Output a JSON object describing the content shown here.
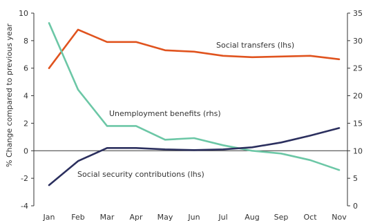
{
  "chart_data": {
    "type": "line",
    "title": "",
    "categories": [
      "Jan",
      "Feb",
      "Mar",
      "Apr",
      "May",
      "Jun",
      "Jul",
      "Aug",
      "Sep",
      "Oct",
      "Nov"
    ],
    "y_left": {
      "label": "% Change compared to previous year",
      "range": [
        -4,
        10
      ],
      "ticks": [
        -4,
        -2,
        0,
        2,
        4,
        6,
        8,
        10
      ]
    },
    "y_right": {
      "label": "",
      "range": [
        0,
        35
      ],
      "ticks": [
        0,
        5,
        10,
        15,
        20,
        25,
        30,
        35
      ]
    },
    "grid": false,
    "series": [
      {
        "name": "Social transfers (lhs)",
        "axis": "left",
        "color": "#E0531E",
        "values": [
          6.0,
          8.8,
          7.9,
          7.9,
          7.3,
          7.2,
          6.9,
          6.8,
          6.85,
          6.9,
          6.65
        ]
      },
      {
        "name": "Unemployment benefits (rhs)",
        "axis": "right",
        "color": "#6CC7A6",
        "values": [
          33.2,
          21.1,
          14.5,
          14.5,
          12.0,
          12.3,
          11.0,
          10.0,
          9.5,
          8.3,
          6.5
        ]
      },
      {
        "name": "Social security contributions (lhs)",
        "axis": "left",
        "color": "#2B2F5E",
        "values": [
          -2.5,
          -0.75,
          0.2,
          0.2,
          0.1,
          0.05,
          0.1,
          0.25,
          0.6,
          1.1,
          1.65
        ]
      }
    ],
    "annotations": [
      {
        "text": "Social transfers (lhs)"
      },
      {
        "text": "Unemployment benefits (rhs)"
      },
      {
        "text": "Social security contributions (lhs)"
      }
    ]
  }
}
